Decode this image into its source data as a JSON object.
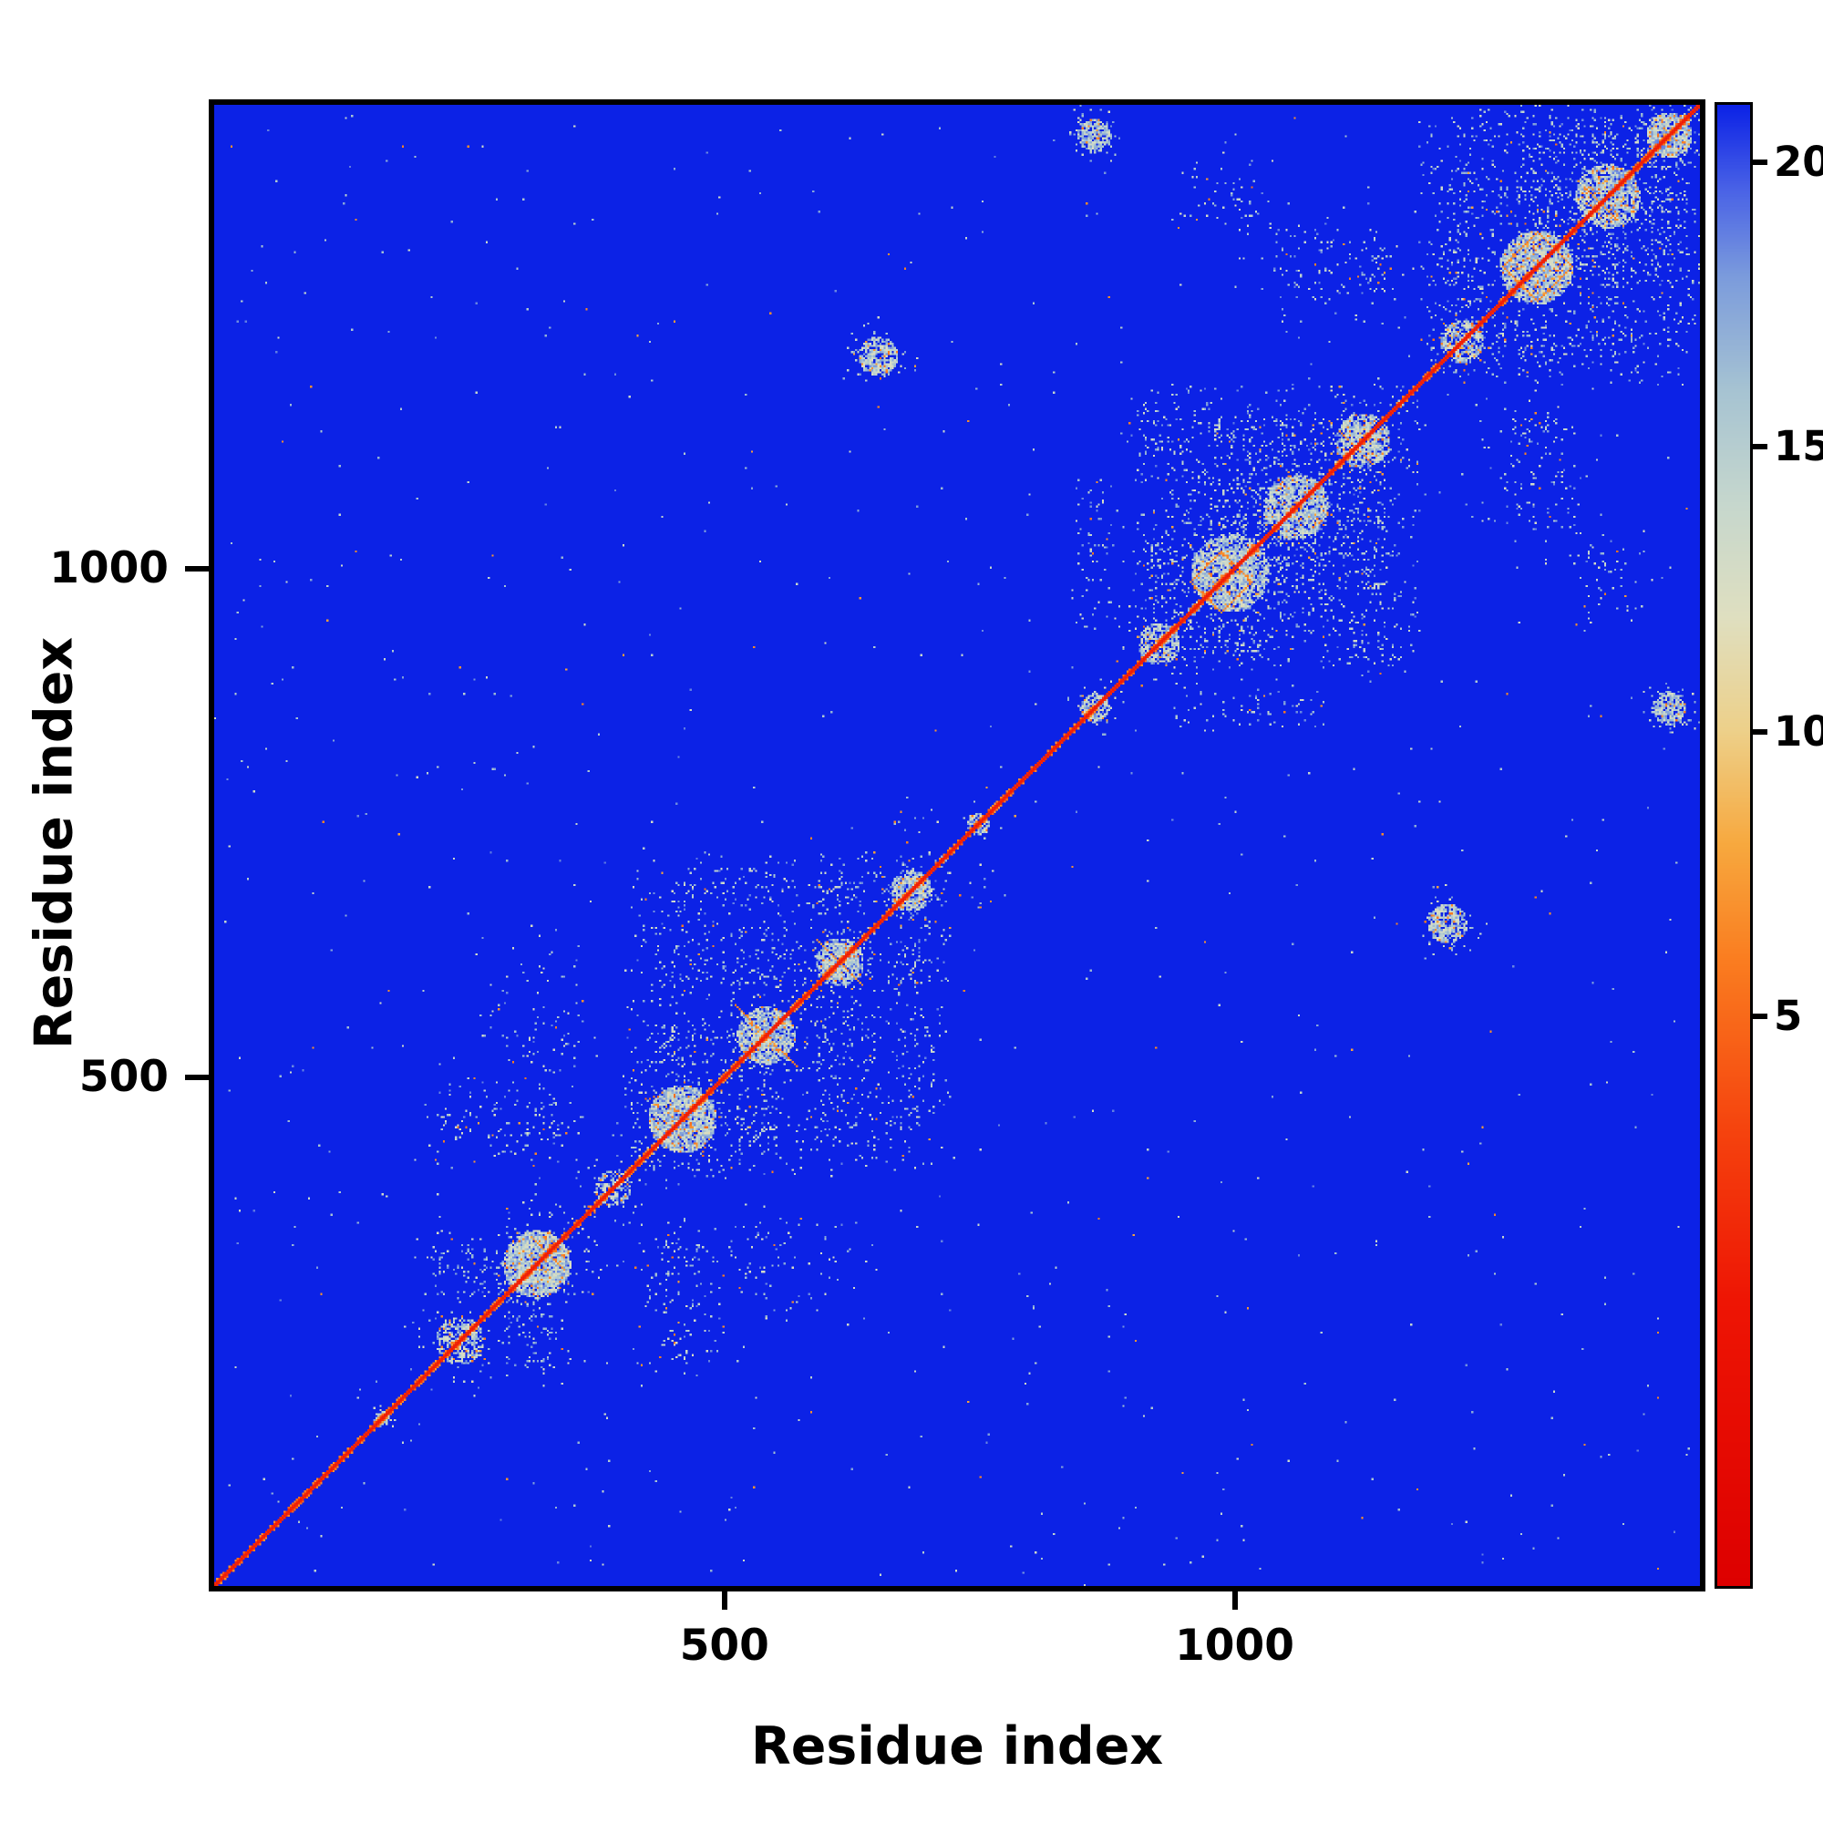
{
  "chart_data": {
    "type": "heatmap",
    "title": "",
    "xlabel": "Residue index",
    "ylabel": "Residue index",
    "x_range": [
      0,
      1456
    ],
    "y_range": [
      0,
      1456
    ],
    "x_ticks": [
      500,
      1000
    ],
    "y_ticks": [
      500,
      1000
    ],
    "grid": false,
    "background_value": 21,
    "diagonal": {
      "value": 0.3,
      "halfwidth_res": 3
    },
    "colorbar": {
      "position": "right",
      "ticks": [
        5,
        10,
        15,
        20
      ],
      "scale_min": -5,
      "scale_max": 21,
      "colormap_stops": [
        [
          -5,
          "#dd0000"
        ],
        [
          0,
          "#ee1504"
        ],
        [
          3,
          "#f5430e"
        ],
        [
          6,
          "#fa7d20"
        ],
        [
          8,
          "#f7a83e"
        ],
        [
          10,
          "#edd089"
        ],
        [
          12,
          "#dfdfc0"
        ],
        [
          14,
          "#c6d7cd"
        ],
        [
          16,
          "#a6c3d2"
        ],
        [
          18,
          "#7b9bdc"
        ],
        [
          19.5,
          "#4a63e6"
        ],
        [
          21,
          "#0c22e6"
        ]
      ]
    },
    "clusters": [
      {
        "c": 165,
        "r": 10,
        "d": 0.5
      },
      {
        "c": 240,
        "r": 30,
        "d": 0.55
      },
      {
        "c": 315,
        "r": 42,
        "d": 0.8
      },
      {
        "c": 390,
        "r": 22,
        "d": 0.55
      },
      {
        "c": 458,
        "r": 42,
        "d": 0.85
      },
      {
        "c": 540,
        "r": 36,
        "d": 0.8
      },
      {
        "c": 612,
        "r": 30,
        "d": 0.75
      },
      {
        "c": 682,
        "r": 26,
        "d": 0.7
      },
      {
        "c": 748,
        "r": 14,
        "d": 0.5
      },
      {
        "c": 862,
        "r": 18,
        "d": 0.7
      },
      {
        "c": 925,
        "r": 26,
        "d": 0.7
      },
      {
        "c": 995,
        "r": 48,
        "d": 0.8
      },
      {
        "c": 1060,
        "r": 40,
        "d": 0.8
      },
      {
        "c": 1125,
        "r": 34,
        "d": 0.75
      },
      {
        "c": 1222,
        "r": 26,
        "d": 0.7
      },
      {
        "c": 1295,
        "r": 45,
        "d": 0.85
      },
      {
        "c": 1365,
        "r": 40,
        "d": 0.8
      },
      {
        "c": 1425,
        "r": 28,
        "d": 0.85
      }
    ],
    "links": [
      {
        "a": 240,
        "b": 315,
        "s": 0.3
      },
      {
        "a": 315,
        "b": 458,
        "s": 0.3
      },
      {
        "a": 240,
        "b": 458,
        "s": 0.22
      },
      {
        "a": 315,
        "b": 540,
        "s": 0.25
      },
      {
        "a": 458,
        "b": 540,
        "s": 0.42
      },
      {
        "a": 458,
        "b": 612,
        "s": 0.38
      },
      {
        "a": 540,
        "b": 612,
        "s": 0.42
      },
      {
        "a": 540,
        "b": 682,
        "s": 0.3
      },
      {
        "a": 612,
        "b": 682,
        "s": 0.35
      },
      {
        "a": 458,
        "b": 682,
        "s": 0.28
      },
      {
        "a": 682,
        "b": 748,
        "s": 0.3
      },
      {
        "a": 925,
        "b": 995,
        "s": 0.4
      },
      {
        "a": 995,
        "b": 1060,
        "s": 0.5
      },
      {
        "a": 1060,
        "b": 1125,
        "s": 0.48
      },
      {
        "a": 995,
        "b": 1125,
        "s": 0.4
      },
      {
        "a": 925,
        "b": 1125,
        "s": 0.3
      },
      {
        "a": 862,
        "b": 995,
        "s": 0.28
      },
      {
        "a": 1222,
        "b": 1295,
        "s": 0.42
      },
      {
        "a": 1295,
        "b": 1365,
        "s": 0.48
      },
      {
        "a": 1365,
        "b": 1425,
        "s": 0.5
      },
      {
        "a": 1222,
        "b": 1365,
        "s": 0.32
      },
      {
        "a": 1295,
        "b": 1425,
        "s": 0.38
      },
      {
        "a": 1125,
        "b": 1295,
        "s": 0.25
      },
      {
        "a": 1060,
        "b": 1295,
        "s": 0.22
      },
      {
        "a": 995,
        "b": 1365,
        "s": 0.18
      },
      {
        "a": 315,
        "b": 612,
        "s": 0.16
      },
      {
        "a": 862,
        "b": 1060,
        "s": 0.2
      }
    ],
    "blobs": [
      {
        "x": 650,
        "y": 1208,
        "r": 24,
        "s": 0.75
      },
      {
        "x": 862,
        "y": 1425,
        "r": 20,
        "s": 0.7
      }
    ],
    "regions": [
      {
        "x0": 1180,
        "x1": 1450,
        "p": 0.055
      },
      {
        "x0": 900,
        "x1": 1180,
        "p": 0.05
      },
      {
        "x0": 400,
        "x1": 720,
        "p": 0.035
      }
    ],
    "diamonds": [
      {
        "c": 985,
        "r": 30
      },
      {
        "c": 1295,
        "r": 33
      }
    ],
    "anti_crosses": [
      {
        "c": 326,
        "l": 16
      },
      {
        "c": 540,
        "l": 30
      },
      {
        "c": 612,
        "l": 22
      },
      {
        "c": 1118,
        "l": 26
      },
      {
        "c": 1358,
        "l": 22
      }
    ],
    "speckle": {
      "count": 420,
      "orange_fraction": 0.1
    }
  }
}
